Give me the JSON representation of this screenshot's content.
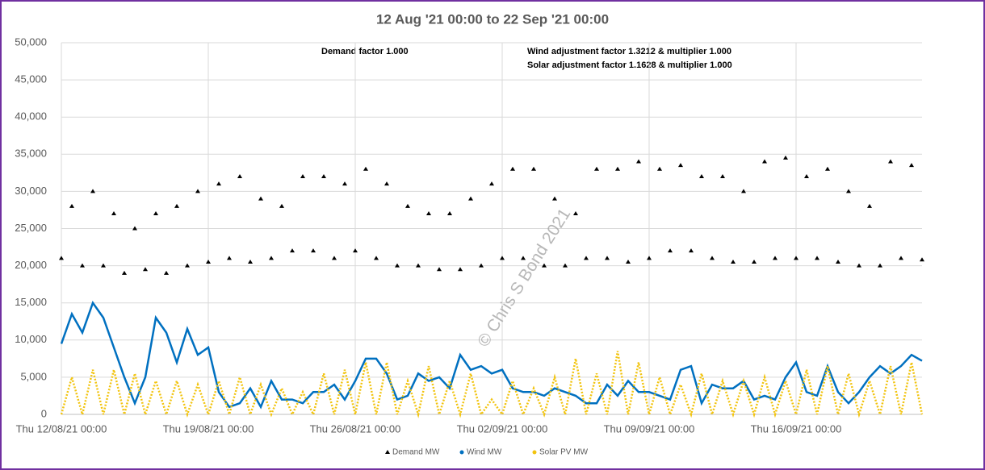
{
  "chart_data": {
    "type": "line",
    "title": "12 Aug '21 00:00 to 22 Sep '21 00:00",
    "annotations": [
      "Demand factor 1.000",
      "Wind adjustment factor 1.3212 & multiplier 1.000",
      "Solar adjustment factor 1.1628 & multiplier 1.000"
    ],
    "watermark": "© Chris S Bond 2021",
    "x": [
      "12/08/21 00:00",
      "12/08/21 12:00",
      "13/08/21 00:00",
      "13/08/21 12:00",
      "14/08/21 00:00",
      "14/08/21 12:00",
      "15/08/21 00:00",
      "15/08/21 12:00",
      "16/08/21 00:00",
      "16/08/21 12:00",
      "17/08/21 00:00",
      "17/08/21 12:00",
      "18/08/21 00:00",
      "18/08/21 12:00",
      "19/08/21 00:00",
      "19/08/21 12:00",
      "20/08/21 00:00",
      "20/08/21 12:00",
      "21/08/21 00:00",
      "21/08/21 12:00",
      "22/08/21 00:00",
      "22/08/21 12:00",
      "23/08/21 00:00",
      "23/08/21 12:00",
      "24/08/21 00:00",
      "24/08/21 12:00",
      "25/08/21 00:00",
      "25/08/21 12:00",
      "26/08/21 00:00",
      "26/08/21 12:00",
      "27/08/21 00:00",
      "27/08/21 12:00",
      "28/08/21 00:00",
      "28/08/21 12:00",
      "29/08/21 00:00",
      "29/08/21 12:00",
      "30/08/21 00:00",
      "30/08/21 12:00",
      "31/08/21 00:00",
      "31/08/21 12:00",
      "01/09/21 00:00",
      "01/09/21 12:00",
      "02/09/21 00:00",
      "02/09/21 12:00",
      "03/09/21 00:00",
      "03/09/21 12:00",
      "04/09/21 00:00",
      "04/09/21 12:00",
      "05/09/21 00:00",
      "05/09/21 12:00",
      "06/09/21 00:00",
      "06/09/21 12:00",
      "07/09/21 00:00",
      "07/09/21 12:00",
      "08/09/21 00:00",
      "08/09/21 12:00",
      "09/09/21 00:00",
      "09/09/21 12:00",
      "10/09/21 00:00",
      "10/09/21 12:00",
      "11/09/21 00:00",
      "11/09/21 12:00",
      "12/09/21 00:00",
      "12/09/21 12:00",
      "13/09/21 00:00",
      "13/09/21 12:00",
      "14/09/21 00:00",
      "14/09/21 12:00",
      "15/09/21 00:00",
      "15/09/21 12:00",
      "16/09/21 00:00",
      "16/09/21 12:00",
      "17/09/21 00:00",
      "17/09/21 12:00",
      "18/09/21 00:00",
      "18/09/21 12:00",
      "19/09/21 00:00",
      "19/09/21 12:00",
      "20/09/21 00:00",
      "20/09/21 12:00",
      "21/09/21 00:00",
      "21/09/21 12:00",
      "22/09/21 00:00"
    ],
    "series": [
      {
        "name": "Demand MW",
        "color": "#000000",
        "style": "markers",
        "values": [
          21000,
          28000,
          20000,
          30000,
          20000,
          27000,
          19000,
          25000,
          19500,
          27000,
          19000,
          28000,
          20000,
          30000,
          20500,
          31000,
          21000,
          32000,
          20500,
          29000,
          21000,
          28000,
          22000,
          32000,
          22000,
          32000,
          21000,
          31000,
          22000,
          33000,
          21000,
          31000,
          20000,
          28000,
          20000,
          27000,
          19500,
          27000,
          19500,
          29000,
          20000,
          31000,
          21000,
          33000,
          21000,
          33000,
          20000,
          29000,
          20000,
          27000,
          21000,
          33000,
          21000,
          33000,
          20500,
          34000,
          21000,
          33000,
          22000,
          33500,
          22000,
          32000,
          21000,
          32000,
          20500,
          30000,
          20500,
          34000,
          21000,
          34500,
          21000,
          32000,
          21000,
          33000,
          20500,
          30000,
          20000,
          28000,
          20000,
          34000,
          21000,
          33500,
          20800
        ]
      },
      {
        "name": "Wind MW",
        "color": "#0070c0",
        "style": "line",
        "values": [
          9500,
          13500,
          11000,
          15000,
          13000,
          9000,
          5000,
          1500,
          5000,
          13000,
          11000,
          7000,
          11500,
          8000,
          9000,
          3000,
          1000,
          1500,
          3500,
          1000,
          4500,
          2000,
          2000,
          1500,
          3000,
          3000,
          4000,
          2000,
          4500,
          7500,
          7500,
          5500,
          2000,
          2500,
          5500,
          4500,
          5000,
          3500,
          8000,
          6000,
          6500,
          5500,
          6000,
          3500,
          3000,
          3000,
          2500,
          3500,
          3000,
          2500,
          1500,
          1500,
          4000,
          2500,
          4500,
          3000,
          3000,
          2500,
          2000,
          6000,
          6500,
          1500,
          4000,
          3500,
          3500,
          4500,
          2000,
          2500,
          2000,
          5000,
          7000,
          3000,
          2500,
          6500,
          3000,
          1500,
          3000,
          5000,
          6500,
          5500,
          6500,
          8000,
          7200
        ]
      },
      {
        "name": "Solar PV MW",
        "color": "#f2c40f",
        "style": "dotted",
        "values": [
          0,
          5000,
          0,
          6000,
          0,
          6000,
          0,
          5500,
          0,
          4500,
          0,
          4500,
          0,
          4000,
          0,
          4500,
          0,
          5000,
          0,
          4000,
          0,
          3500,
          0,
          3000,
          0,
          5500,
          0,
          6000,
          0,
          7000,
          0,
          7000,
          0,
          4500,
          0,
          6500,
          0,
          4500,
          0,
          5500,
          0,
          2000,
          0,
          4500,
          0,
          3500,
          0,
          5000,
          0,
          7500,
          0,
          5500,
          0,
          8500,
          0,
          7000,
          0,
          5000,
          0,
          4000,
          0,
          5500,
          0,
          4500,
          0,
          4500,
          0,
          5000,
          0,
          4500,
          0,
          6000,
          0,
          6500,
          0,
          5500,
          0,
          4500,
          0,
          6500,
          0,
          7000,
          0
        ]
      }
    ],
    "xlim": [
      "12/08/21 00:00",
      "22/09/21 00:00"
    ],
    "xticks": [
      {
        "value": "12/08/21 00:00",
        "label": "Thu 12/08/21 00:00"
      },
      {
        "value": "19/08/21 00:00",
        "label": "Thu 19/08/21 00:00"
      },
      {
        "value": "26/08/21 00:00",
        "label": "Thu 26/08/21 00:00"
      },
      {
        "value": "02/09/21 00:00",
        "label": "Thu 02/09/21 00:00"
      },
      {
        "value": "09/09/21 00:00",
        "label": "Thu 09/09/21 00:00"
      },
      {
        "value": "16/09/21 00:00",
        "label": "Thu 16/09/21 00:00"
      }
    ],
    "ylim": [
      0,
      50000
    ],
    "yticks": [
      0,
      {
        "value": 5000,
        "label": "5,000"
      },
      {
        "value": 10000,
        "label": "10,000"
      },
      {
        "value": 15000,
        "label": "15,000"
      },
      {
        "value": 20000,
        "label": "20,000"
      },
      {
        "value": 25000,
        "label": "25,000"
      },
      {
        "value": 30000,
        "label": "30,000"
      },
      {
        "value": 35000,
        "label": "35,000"
      },
      {
        "value": 40000,
        "label": "40,000"
      },
      {
        "value": 45000,
        "label": "45,000"
      },
      {
        "value": 50000,
        "label": "50,000"
      }
    ],
    "grid": true,
    "legend": "bottom"
  }
}
